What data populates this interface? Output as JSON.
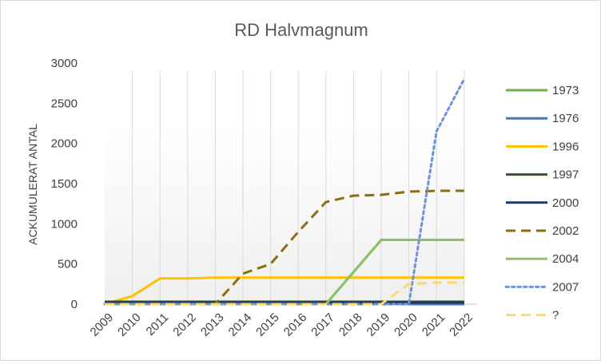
{
  "chart_data": {
    "type": "line",
    "title": "RD Halvmagnum",
    "xlabel": "",
    "ylabel": "ACKUMULERAT ANTAL",
    "categories": [
      "2009",
      "2010",
      "2011",
      "2012",
      "2013",
      "2014",
      "2015",
      "2016",
      "2017",
      "2018",
      "2019",
      "2020",
      "2021",
      "2022"
    ],
    "ylim": [
      0,
      3000
    ],
    "yticks": [
      0,
      500,
      1000,
      1500,
      2000,
      2500,
      3000
    ],
    "grid": "vertical lines at categories",
    "legend": "right",
    "series": [
      {
        "name": "1973",
        "color": "#70AD47",
        "dash": "solid",
        "values": [
          0,
          0,
          0,
          0,
          0,
          0,
          0,
          0,
          0,
          400,
          800,
          800,
          800,
          800
        ]
      },
      {
        "name": "1976",
        "color": "#4472C4",
        "dash": "solid",
        "values": [
          0,
          0,
          0,
          0,
          0,
          0,
          0,
          0,
          0,
          0,
          0,
          0,
          0,
          0
        ]
      },
      {
        "name": "1996",
        "color": "#FFC000",
        "dash": "solid",
        "values": [
          0,
          100,
          320,
          320,
          330,
          330,
          330,
          330,
          330,
          330,
          330,
          330,
          330,
          330
        ]
      },
      {
        "name": "1997",
        "color": "#375623",
        "dash": "solid",
        "values": [
          30,
          30,
          30,
          30,
          30,
          30,
          30,
          30,
          30,
          30,
          30,
          30,
          30,
          30
        ]
      },
      {
        "name": "2000",
        "color": "#1F3864",
        "dash": "solid",
        "values": [
          20,
          20,
          20,
          20,
          20,
          20,
          20,
          20,
          20,
          20,
          20,
          20,
          20,
          20
        ]
      },
      {
        "name": "2002",
        "color": "#8B6D14",
        "dash": "dash",
        "values": [
          0,
          0,
          0,
          0,
          0,
          380,
          500,
          900,
          1270,
          1350,
          1360,
          1400,
          1410,
          1410
        ]
      },
      {
        "name": "2004",
        "color": "#8CC168",
        "dash": "solid",
        "values": [
          0,
          0,
          0,
          0,
          0,
          0,
          0,
          0,
          0,
          400,
          800,
          800,
          800,
          800
        ]
      },
      {
        "name": "2007",
        "color": "#6F93D9",
        "dash": "dot",
        "values": [
          0,
          0,
          0,
          0,
          0,
          0,
          0,
          0,
          0,
          0,
          0,
          0,
          2150,
          2800
        ]
      },
      {
        "name": "?",
        "color": "#FFD966",
        "dash": "dash",
        "values": [
          0,
          0,
          0,
          0,
          0,
          0,
          0,
          0,
          0,
          0,
          0,
          250,
          270,
          270
        ]
      }
    ]
  }
}
